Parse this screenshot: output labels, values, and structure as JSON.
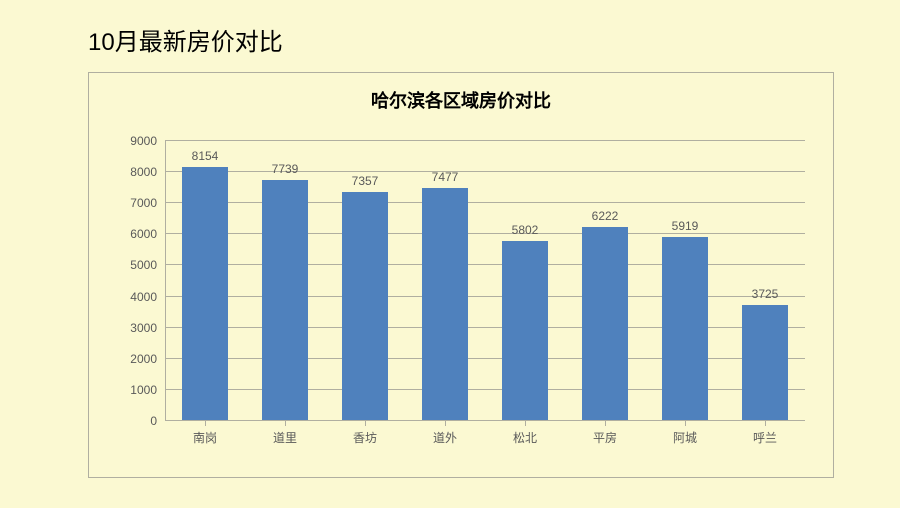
{
  "page_title": "10月最新房价对比",
  "chart": {
    "type": "bar",
    "title": "哈尔滨各区域房价对比",
    "title_fontsize": 18,
    "categories": [
      "南岗",
      "道里",
      "香坊",
      "道外",
      "松北",
      "平房",
      "阿城",
      "呼兰"
    ],
    "values": [
      8154,
      7739,
      7357,
      7477,
      5802,
      6222,
      5919,
      3725
    ],
    "bar_color": "#4f81bd",
    "ylim": [
      0,
      9000
    ],
    "ytick_step": 1000,
    "yticks": [
      0,
      1000,
      2000,
      3000,
      4000,
      5000,
      6000,
      7000,
      8000,
      9000
    ],
    "grid_color": "#b0afa0",
    "background_color": "#fbf9d2",
    "label_color": "#595959",
    "label_fontsize": 12,
    "bar_width": 0.58
  }
}
